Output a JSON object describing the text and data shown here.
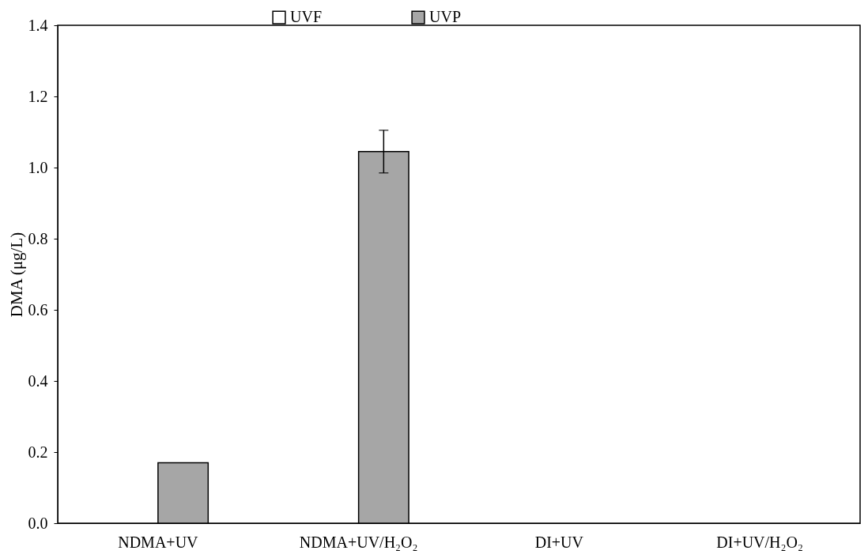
{
  "chart_data": {
    "type": "bar",
    "ylabel": "DMA (μg/L)",
    "categories": [
      "NDMA+UV",
      "NDMA+UV/H₂O₂",
      "DI+UV",
      "DI+UV/H₂O₂"
    ],
    "series": [
      {
        "name": "UVF",
        "color": "#ffffff",
        "values": [
          null,
          null,
          null,
          null
        ]
      },
      {
        "name": "UVP",
        "color": "#a6a6a6",
        "values": [
          0.17,
          1.045,
          null,
          null
        ],
        "errors": [
          null,
          0.06,
          null,
          null
        ]
      }
    ],
    "ylim": [
      0,
      1.4
    ],
    "yticks": [
      {
        "value": 0,
        "label": "0.0"
      },
      0.2,
      0.4,
      0.6,
      0.8,
      {
        "value": 1,
        "label": "1.0"
      },
      1.2,
      1.4
    ],
    "grid": false,
    "legend": "top"
  }
}
